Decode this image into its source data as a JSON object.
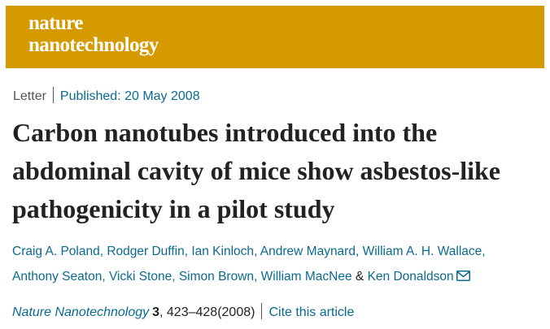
{
  "banner": {
    "logo_line1": "nature",
    "logo_line2": "nanotechnology",
    "background": "#d49a00"
  },
  "meta": {
    "article_type": "Letter",
    "published": "Published: 20 May 2008"
  },
  "title": "Carbon nanotubes introduced into the abdominal cavity of mice show asbestos-like pathogenicity in a pilot study",
  "authors": [
    "Craig A. Poland",
    "Rodger Duffin",
    "Ian Kinloch",
    "Andrew Maynard",
    "William A. H. Wallace",
    "Anthony Seaton",
    "Vicki Stone",
    "Simon Brown",
    "William MacNee",
    "Ken Donaldson"
  ],
  "authors_ampersand": "&",
  "citation": {
    "journal": "Nature Nanotechnology",
    "volume": "3",
    "pages_year": ", 423–428(2008)",
    "cite_link": "Cite this article"
  },
  "colors": {
    "link": "#0a6a8f",
    "text": "#222222"
  },
  "icons": {
    "corresponding_author": "mail-icon"
  }
}
